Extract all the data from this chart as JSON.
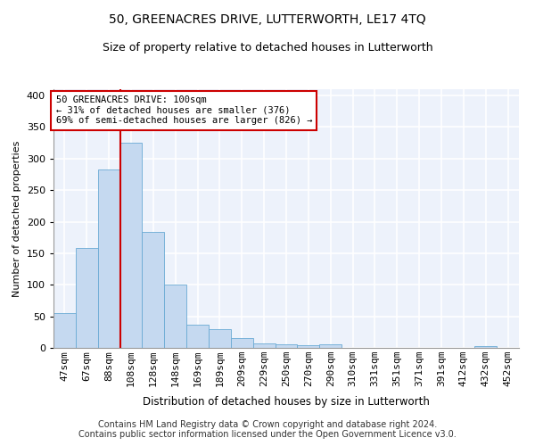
{
  "title": "50, GREENACRES DRIVE, LUTTERWORTH, LE17 4TQ",
  "subtitle": "Size of property relative to detached houses in Lutterworth",
  "xlabel": "Distribution of detached houses by size in Lutterworth",
  "ylabel": "Number of detached properties",
  "categories": [
    "47sqm",
    "67sqm",
    "88sqm",
    "108sqm",
    "128sqm",
    "148sqm",
    "169sqm",
    "189sqm",
    "209sqm",
    "229sqm",
    "250sqm",
    "270sqm",
    "290sqm",
    "310sqm",
    "331sqm",
    "351sqm",
    "371sqm",
    "391sqm",
    "412sqm",
    "432sqm",
    "452sqm"
  ],
  "values": [
    55,
    158,
    283,
    325,
    184,
    101,
    37,
    30,
    16,
    7,
    5,
    4,
    5,
    0,
    0,
    0,
    0,
    0,
    0,
    3,
    0
  ],
  "bar_color": "#c5d9f0",
  "bar_edge_color": "#6aaad4",
  "vline_color": "#cc0000",
  "annotation_text": "50 GREENACRES DRIVE: 100sqm\n← 31% of detached houses are smaller (376)\n69% of semi-detached houses are larger (826) →",
  "annotation_box_color": "#ffffff",
  "annotation_box_edge_color": "#cc0000",
  "ylim": [
    0,
    410
  ],
  "yticks": [
    0,
    50,
    100,
    150,
    200,
    250,
    300,
    350,
    400
  ],
  "background_color": "#edf2fb",
  "grid_color": "#ffffff",
  "footer_text": "Contains HM Land Registry data © Crown copyright and database right 2024.\nContains public sector information licensed under the Open Government Licence v3.0.",
  "title_fontsize": 10,
  "subtitle_fontsize": 9,
  "xlabel_fontsize": 8.5,
  "ylabel_fontsize": 8,
  "tick_fontsize": 8,
  "footer_fontsize": 7,
  "annot_fontsize": 7.5
}
